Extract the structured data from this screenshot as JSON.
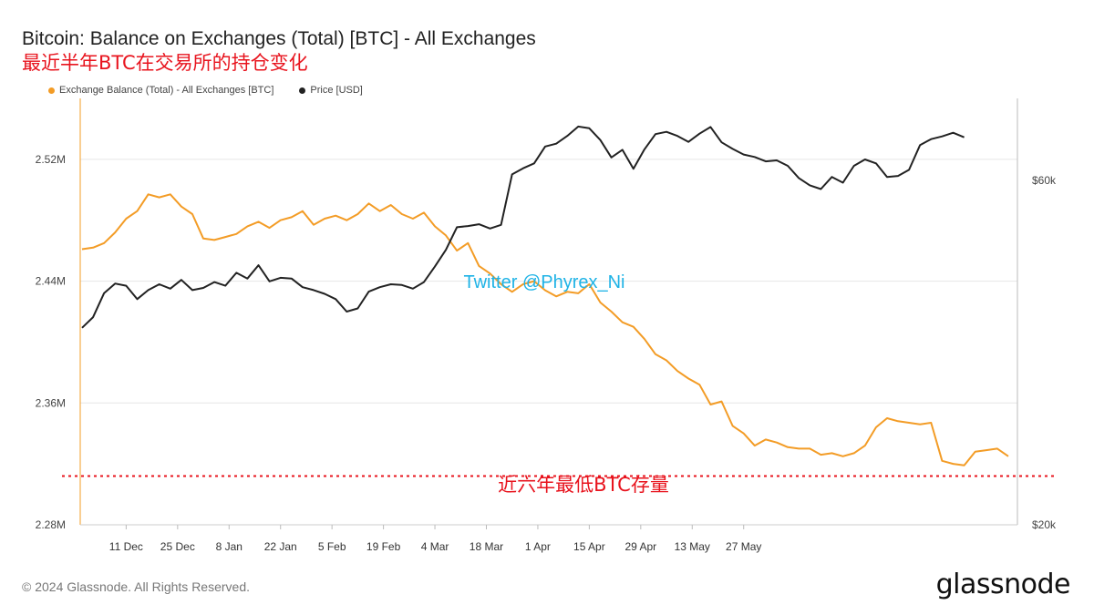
{
  "title": "Bitcoin: Balance on Exchanges (Total) [BTC] - All Exchanges",
  "subtitle": "最近半年BTC在交易所的持仓变化",
  "legend": {
    "balance": "Exchange Balance (Total) - All Exchanges [BTC]",
    "price": "Price [USD]"
  },
  "watermark": "Twitter @Phyrex_Ni",
  "annotation": "近六年最低BTC存量",
  "footer": "© 2024 Glassnode. All Rights Reserved.",
  "logo": "glassnode",
  "colors": {
    "balance": "#f39c26",
    "price": "#222222",
    "watermark": "#1fb3e6",
    "annotation": "#e8141e",
    "grid": "#e6e6e6"
  },
  "chart_data": {
    "type": "line",
    "x_ticks": [
      "11 Dec",
      "25 Dec",
      "8 Jan",
      "22 Jan",
      "5 Feb",
      "19 Feb",
      "4 Mar",
      "18 Mar",
      "1 Apr",
      "15 Apr",
      "29 Apr",
      "13 May",
      "27 May"
    ],
    "y_left": {
      "ticks": [
        "2.28M",
        "2.36M",
        "2.44M",
        "2.52M"
      ],
      "range": [
        2.28,
        2.56
      ]
    },
    "y_right": {
      "ticks": [
        "$20k",
        "$60k"
      ],
      "range": [
        20,
        78
      ],
      "scale": "log"
    },
    "reference_line": {
      "value": 2.312,
      "style": "dotted"
    },
    "series": [
      {
        "name": "Exchange Balance (Total) - All Exchanges [BTC]",
        "axis": "left",
        "start": "2023-11-29",
        "step_days": 3,
        "values": [
          2.461,
          2.462,
          2.465,
          2.472,
          2.481,
          2.486,
          2.497,
          2.495,
          2.497,
          2.489,
          2.484,
          2.468,
          2.467,
          2.469,
          2.471,
          2.476,
          2.479,
          2.475,
          2.48,
          2.482,
          2.486,
          2.477,
          2.481,
          2.483,
          2.48,
          2.484,
          2.491,
          2.486,
          2.49,
          2.484,
          2.481,
          2.485,
          2.476,
          2.47,
          2.46,
          2.465,
          2.45,
          2.445,
          2.438,
          2.433,
          2.438,
          2.44,
          2.434,
          2.43,
          2.433,
          2.432,
          2.438,
          2.426,
          2.42,
          2.413,
          2.41,
          2.402,
          2.392,
          2.388,
          2.381,
          2.376,
          2.372,
          2.359,
          2.361,
          2.345,
          2.34,
          2.332,
          2.336,
          2.334,
          2.331,
          2.33,
          2.33,
          2.326,
          2.327,
          2.325,
          2.327,
          2.332,
          2.344,
          2.35,
          2.348,
          2.347,
          2.346,
          2.347,
          2.322,
          2.32,
          2.319,
          2.328,
          2.329,
          2.33,
          2.325
        ]
      },
      {
        "name": "Price [USD]",
        "axis": "right",
        "start": "2023-11-29",
        "step_days": 3,
        "values": [
          37.5,
          38.8,
          41.9,
          43.2,
          42.9,
          41.1,
          42.3,
          43.1,
          42.5,
          43.7,
          42.3,
          42.6,
          43.4,
          42.9,
          44.7,
          43.9,
          45.8,
          43.5,
          44.0,
          43.9,
          42.7,
          42.3,
          41.8,
          41.1,
          39.5,
          39.9,
          42.1,
          42.7,
          43.1,
          43.0,
          42.5,
          43.4,
          45.6,
          48.1,
          51.7,
          51.9,
          52.2,
          51.5,
          52.1,
          61.2,
          62.4,
          63.4,
          66.9,
          67.5,
          69.2,
          71.3,
          70.9,
          68.3,
          64.6,
          66.2,
          62.3,
          66.3,
          69.6,
          70.1,
          69.2,
          67.9,
          69.7,
          71.2,
          67.8,
          66.4,
          65.2,
          64.7,
          63.8,
          64.0,
          62.9,
          60.5,
          59.1,
          58.4,
          60.7,
          59.6,
          62.9,
          64.2,
          63.4,
          60.7,
          60.9,
          62.1,
          67.2,
          68.5,
          69.1,
          69.9,
          68.9
        ]
      }
    ]
  }
}
